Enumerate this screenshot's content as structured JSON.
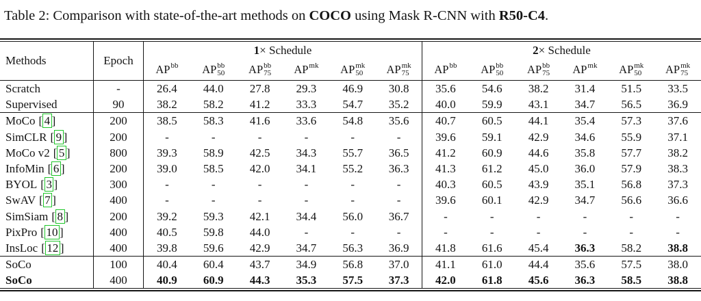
{
  "title": {
    "prefix": "Table 2: Comparison with state-of-the-art methods on ",
    "coco": "COCO",
    "mid": " using Mask R-CNN with ",
    "backbone": "R50-C4",
    "suffix": "."
  },
  "table": {
    "link_color": "#1fc629",
    "header": {
      "methods": "Methods",
      "epoch": "Epoch",
      "schedules": [
        {
          "num": "1",
          "rest": "× Schedule"
        },
        {
          "num": "2",
          "rest": "× Schedule"
        }
      ],
      "ap_cols": [
        {
          "base": "AP",
          "sup": "bb",
          "sub": ""
        },
        {
          "base": "AP",
          "sup": "bb",
          "sub": "50"
        },
        {
          "base": "AP",
          "sup": "bb",
          "sub": "75"
        },
        {
          "base": "AP",
          "sup": "mk",
          "sub": ""
        },
        {
          "base": "AP",
          "sup": "mk",
          "sub": "50"
        },
        {
          "base": "AP",
          "sup": "mk",
          "sub": "75"
        }
      ]
    },
    "sections": [
      {
        "name": "baselines",
        "rows": [
          {
            "method": "Scratch",
            "ref": "",
            "epoch": "-",
            "vals": [
              "26.4",
              "44.0",
              "27.8",
              "29.3",
              "46.9",
              "30.8",
              "35.6",
              "54.6",
              "38.2",
              "31.4",
              "51.5",
              "33.5"
            ]
          },
          {
            "method": "Supervised",
            "ref": "",
            "epoch": "90",
            "vals": [
              "38.2",
              "58.2",
              "41.2",
              "33.3",
              "54.7",
              "35.2",
              "40.0",
              "59.9",
              "43.1",
              "34.7",
              "56.5",
              "36.9"
            ]
          }
        ]
      },
      {
        "name": "prior-methods",
        "rows": [
          {
            "method": "MoCo",
            "ref": "4",
            "epoch": "200",
            "vals": [
              "38.5",
              "58.3",
              "41.6",
              "33.6",
              "54.8",
              "35.6",
              "40.7",
              "60.5",
              "44.1",
              "35.4",
              "57.3",
              "37.6"
            ]
          },
          {
            "method": "SimCLR",
            "ref": "9",
            "epoch": "200",
            "vals": [
              "-",
              "-",
              "-",
              "-",
              "-",
              "-",
              "39.6",
              "59.1",
              "42.9",
              "34.6",
              "55.9",
              "37.1"
            ]
          },
          {
            "method": "MoCo v2",
            "ref": "5",
            "epoch": "800",
            "vals": [
              "39.3",
              "58.9",
              "42.5",
              "34.3",
              "55.7",
              "36.5",
              "41.2",
              "60.9",
              "44.6",
              "35.8",
              "57.7",
              "38.2"
            ]
          },
          {
            "method": "InfoMin",
            "ref": "6",
            "epoch": "200",
            "vals": [
              "39.0",
              "58.5",
              "42.0",
              "34.1",
              "55.2",
              "36.3",
              "41.3",
              "61.2",
              "45.0",
              "36.0",
              "57.9",
              "38.3"
            ]
          },
          {
            "method": "BYOL",
            "ref": "3",
            "epoch": "300",
            "vals": [
              "-",
              "-",
              "-",
              "-",
              "-",
              "-",
              "40.3",
              "60.5",
              "43.9",
              "35.1",
              "56.8",
              "37.3"
            ]
          },
          {
            "method": "SwAV",
            "ref": "7",
            "epoch": "400",
            "vals": [
              "-",
              "-",
              "-",
              "-",
              "-",
              "-",
              "39.6",
              "60.1",
              "42.9",
              "34.7",
              "56.6",
              "36.6"
            ]
          },
          {
            "method": "SimSiam",
            "ref": "8",
            "epoch": "200",
            "vals": [
              "39.2",
              "59.3",
              "42.1",
              "34.4",
              "56.0",
              "36.7",
              "-",
              "-",
              "-",
              "-",
              "-",
              "-"
            ]
          },
          {
            "method": "PixPro",
            "ref": "10",
            "epoch": "400",
            "vals": [
              "40.5",
              "59.8",
              "44.0",
              "-",
              "-",
              "-",
              "-",
              "-",
              "-",
              "-",
              "-",
              "-"
            ]
          },
          {
            "method": "InsLoc",
            "ref": "12",
            "epoch": "400",
            "bold_vals": [
              9,
              11
            ],
            "vals": [
              "39.8",
              "59.6",
              "42.9",
              "34.7",
              "56.3",
              "36.9",
              "41.8",
              "61.6",
              "45.4",
              "36.3",
              "58.2",
              "38.8"
            ]
          }
        ]
      },
      {
        "name": "soco",
        "rows": [
          {
            "method": "SoCo",
            "ref": "",
            "epoch": "100",
            "vals": [
              "40.4",
              "60.4",
              "43.7",
              "34.9",
              "56.8",
              "37.0",
              "41.1",
              "61.0",
              "44.4",
              "35.6",
              "57.5",
              "38.0"
            ]
          },
          {
            "method": "SoCo",
            "ref": "",
            "epoch": "400",
            "bold_method": true,
            "bold_vals": "all",
            "vals": [
              "40.9",
              "60.9",
              "44.3",
              "35.3",
              "57.5",
              "37.3",
              "42.0",
              "61.8",
              "45.6",
              "36.3",
              "58.5",
              "38.8"
            ]
          }
        ]
      }
    ]
  }
}
